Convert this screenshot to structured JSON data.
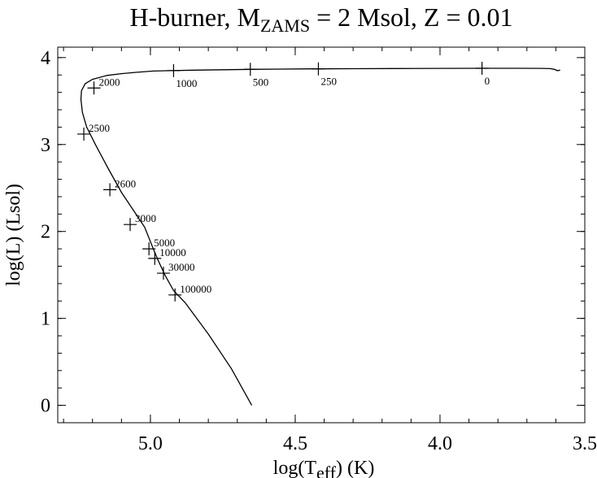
{
  "chart_data": {
    "type": "line",
    "title": {
      "prefix": "H-burner, M",
      "subscript": "ZAMS",
      "suffix": " = 2 Msol, Z = 0.01"
    },
    "xlabel": {
      "prefix": "log(T",
      "subscript": "eff",
      "suffix": ") (K)"
    },
    "ylabel": "log(L) (Lsol)",
    "xlim": [
      5.32,
      3.5
    ],
    "ylim": [
      -0.2,
      4.12
    ],
    "x_reversed": true,
    "grid": false,
    "legend": "none",
    "x_ticks": [
      {
        "value": 5.0,
        "label": "5.0"
      },
      {
        "value": 4.5,
        "label": "4.5"
      },
      {
        "value": 4.0,
        "label": "4.0"
      },
      {
        "value": 3.5,
        "label": "3.5"
      }
    ],
    "x_minor_step": 0.1,
    "y_ticks": [
      {
        "value": 0,
        "label": "0"
      },
      {
        "value": 1,
        "label": "1"
      },
      {
        "value": 2,
        "label": "2"
      },
      {
        "value": 3,
        "label": "3"
      },
      {
        "value": 4,
        "label": "4"
      }
    ],
    "y_minor_step": 0.2,
    "series": [
      {
        "x": [
          4.65,
          4.72,
          4.8,
          4.88,
          4.92,
          4.95,
          4.975,
          4.99,
          5.02,
          5.06,
          5.1,
          5.15,
          5.19,
          5.22,
          5.235,
          5.24,
          5.238,
          5.225,
          5.2,
          5.15,
          5.1,
          5.05,
          4.99,
          4.93,
          4.85,
          4.75,
          4.65,
          4.55,
          4.45,
          4.42,
          4.3,
          4.15,
          4.0,
          3.85,
          3.75,
          3.65,
          3.62,
          3.605,
          3.595,
          3.585
        ],
        "y": [
          0.0,
          0.42,
          0.82,
          1.18,
          1.32,
          1.5,
          1.68,
          1.8,
          2.05,
          2.25,
          2.45,
          2.75,
          3.0,
          3.2,
          3.37,
          3.52,
          3.62,
          3.7,
          3.75,
          3.795,
          3.815,
          3.83,
          3.845,
          3.85,
          3.855,
          3.86,
          3.865,
          3.868,
          3.87,
          3.87,
          3.872,
          3.874,
          3.876,
          3.877,
          3.877,
          3.876,
          3.873,
          3.865,
          3.85,
          3.855
        ]
      }
    ],
    "annotations": [
      {
        "x": 5.195,
        "y": 3.65,
        "label": "2000"
      },
      {
        "x": 5.23,
        "y": 3.12,
        "label": "2500"
      },
      {
        "x": 5.14,
        "y": 2.48,
        "label": "2600"
      },
      {
        "x": 5.07,
        "y": 2.08,
        "label": "3000"
      },
      {
        "x": 5.005,
        "y": 1.8,
        "label": "5000"
      },
      {
        "x": 4.985,
        "y": 1.69,
        "label": "10000"
      },
      {
        "x": 4.955,
        "y": 1.52,
        "label": "30000"
      },
      {
        "x": 4.915,
        "y": 1.27,
        "label": "100000"
      },
      {
        "x": 4.92,
        "y": 3.85,
        "label": "1000"
      },
      {
        "x": 4.655,
        "y": 3.865,
        "label": "500"
      },
      {
        "x": 4.42,
        "y": 3.87,
        "label": "250"
      },
      {
        "x": 3.855,
        "y": 3.877,
        "label": "0"
      }
    ]
  }
}
